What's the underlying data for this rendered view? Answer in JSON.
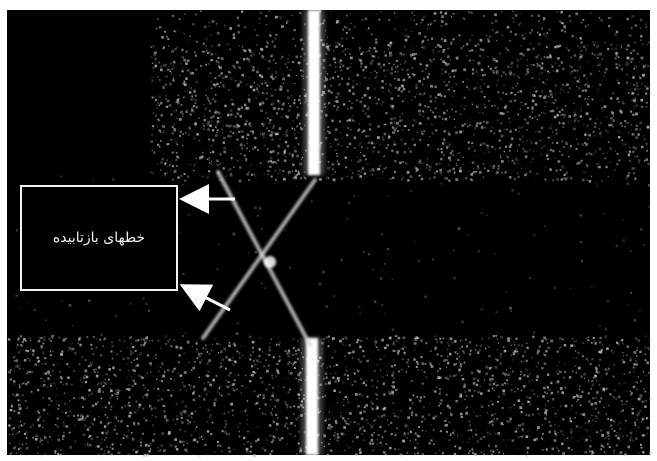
{
  "image": {
    "caption": "خطهای بازتابیده",
    "background_color": "#000000",
    "speckle_color": "#c9c9c9",
    "line_color": "#ffffff",
    "frame_color": "#f2f2f2",
    "arrow_color": "#ffffff",
    "arrow_count": 2
  }
}
